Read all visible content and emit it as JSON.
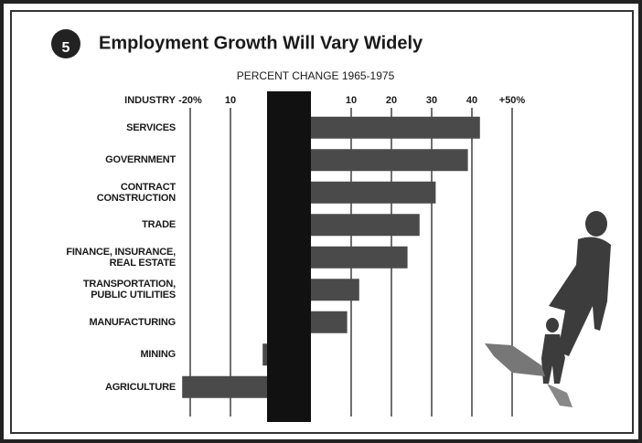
{
  "chart_data": {
    "type": "bar",
    "orientation": "horizontal",
    "badge": "5",
    "title": "Employment Growth Will Vary Widely",
    "subtitle": "PERCENT CHANGE 1965-1975",
    "category_header": "INDUSTRY",
    "categories": [
      "SERVICES",
      "GOVERNMENT",
      "CONTRACT\nCONSTRUCTION",
      "TRADE",
      "FINANCE, INSURANCE,\nREAL ESTATE",
      "TRANSPORTATION,\nPUBLIC UTILITIES",
      "MANUFACTURING",
      "MINING",
      "AGRICULTURE"
    ],
    "values": [
      42,
      39,
      31,
      27,
      24,
      12,
      9,
      -2,
      -22
    ],
    "color": "#4a4a4a",
    "xlim": [
      -22,
      50
    ],
    "xticks": [
      {
        "value": -20,
        "label": "-20%"
      },
      {
        "value": -10,
        "label": "10"
      },
      10,
      20,
      30,
      40,
      {
        "value": 50,
        "label": "+50%"
      }
    ],
    "grid": true
  }
}
